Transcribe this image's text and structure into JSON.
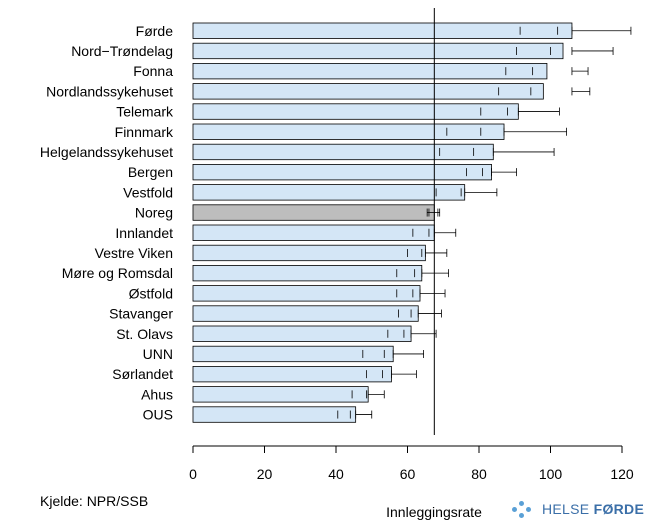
{
  "chart_data": {
    "type": "bar",
    "orientation": "horizontal",
    "xlabel": "Innleggingsrate",
    "xlim": [
      0,
      120
    ],
    "xticks": [
      0,
      20,
      40,
      60,
      80,
      100,
      120
    ],
    "reference_line": 67.5,
    "highlight_category": "Noreg",
    "colors": {
      "bar": "#d4e6f6",
      "highlight": "#bdbdbd",
      "edge": "#000000"
    },
    "categories": [
      "Førde",
      "Nord−Trøndelag",
      "Fonna",
      "Nordlandssykehuset",
      "Telemark",
      "Finnmark",
      "Helgelandssykehuset",
      "Bergen",
      "Vestfold",
      "Noreg",
      "Innlandet",
      "Vestre Viken",
      "Møre og Romsdal",
      "Østfold",
      "Stavanger",
      "St. Olavs",
      "UNN",
      "Sørlandet",
      "Ahus",
      "OUS"
    ],
    "values": [
      106,
      103.5,
      99,
      98,
      91,
      87,
      84,
      83.5,
      76,
      67.5,
      67.5,
      65,
      64,
      63.5,
      63,
      61,
      56,
      55.5,
      49,
      45.5
    ],
    "inner_ci": [
      [
        91.5,
        102
      ],
      [
        90.5,
        100
      ],
      [
        87.5,
        95
      ],
      [
        85.5,
        94.5
      ],
      [
        80.5,
        88
      ],
      [
        71,
        80.5
      ],
      [
        69,
        78.5
      ],
      [
        76.5,
        81
      ],
      [
        68,
        75
      ],
      [
        66,
        68.5
      ],
      [
        61.5,
        66
      ],
      [
        60,
        64
      ],
      [
        57,
        62
      ],
      [
        57,
        61.5
      ],
      [
        57.5,
        61
      ],
      [
        54.5,
        59
      ],
      [
        47.5,
        53.5
      ],
      [
        48.5,
        53
      ],
      [
        44.5,
        48.5
      ],
      [
        40.5,
        44
      ]
    ],
    "outer_ci": [
      [
        106,
        122.5
      ],
      [
        106,
        117.5
      ],
      [
        106,
        110.5
      ],
      [
        106,
        111
      ],
      [
        91,
        102.5
      ],
      [
        87,
        104.5
      ],
      [
        84,
        101
      ],
      [
        83.5,
        90.5
      ],
      [
        76,
        85
      ],
      [
        65.5,
        69
      ],
      [
        67.5,
        73.5
      ],
      [
        65,
        71
      ],
      [
        64,
        71.5
      ],
      [
        63.5,
        70.5
      ],
      [
        63,
        69.5
      ],
      [
        61,
        68
      ],
      [
        56,
        64.5
      ],
      [
        55.5,
        62.5
      ],
      [
        49,
        53.5
      ],
      [
        45.5,
        50
      ]
    ]
  },
  "footer": {
    "source": "Kjelde: NPR/SSB",
    "logo_text_light": "HELSE ",
    "logo_text_bold": "FØRDE"
  }
}
